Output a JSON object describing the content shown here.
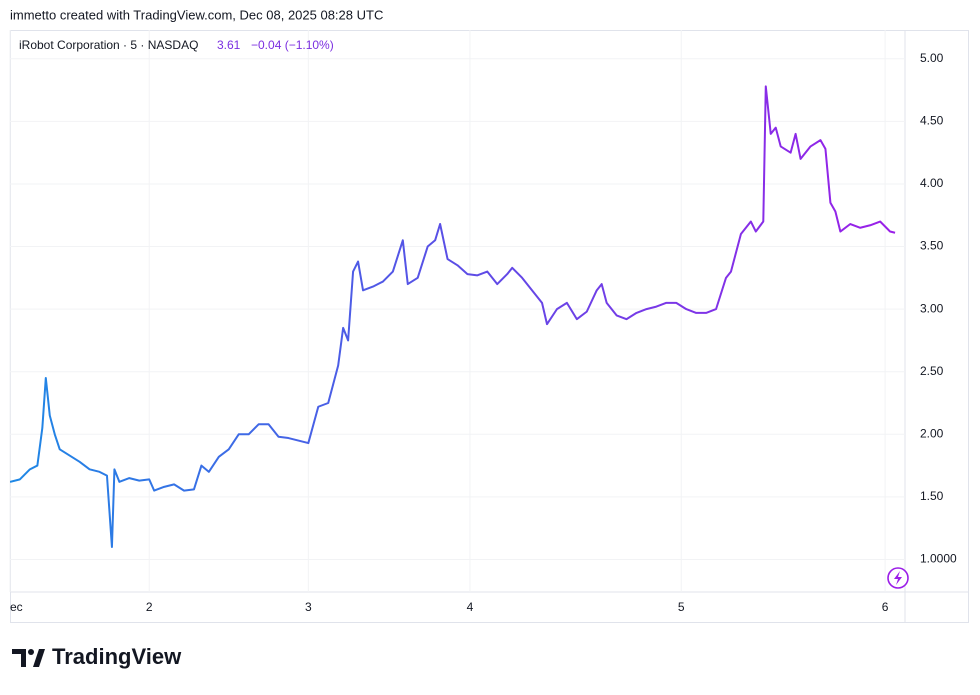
{
  "header": {
    "text": "immetto created with TradingView.com, Dec 08, 2025 08:28 UTC"
  },
  "legend": {
    "symbol": "iRobot Corporation · 5 · NASDAQ",
    "last": "3.61",
    "change": "−0.04 (−1.10%)"
  },
  "footer": {
    "brand": "TradingView"
  },
  "chart_data": {
    "type": "line",
    "xlim": [
      0,
      180
    ],
    "xticks": [
      {
        "value": 0,
        "label": "ec"
      },
      {
        "value": 28,
        "label": "2"
      },
      {
        "value": 60,
        "label": "3"
      },
      {
        "value": 92.5,
        "label": "4"
      },
      {
        "value": 135,
        "label": "5"
      },
      {
        "value": 176,
        "label": "6"
      }
    ],
    "ylim": [
      0.74,
      5.23
    ],
    "yticks": [
      {
        "value": 1,
        "label": "1.0000"
      },
      {
        "value": 1.5,
        "label": "1.50"
      },
      {
        "value": 2,
        "label": "2.00"
      },
      {
        "value": 2.5,
        "label": "2.50"
      },
      {
        "value": 3,
        "label": "3.00"
      },
      {
        "value": 3.5,
        "label": "3.50"
      },
      {
        "value": 4,
        "label": "4.00"
      },
      {
        "value": 4.5,
        "label": "4.50"
      },
      {
        "value": 5,
        "label": "5.00"
      }
    ],
    "grid": true,
    "x": [
      0,
      2,
      4,
      5.5,
      6.5,
      7.2,
      8,
      9,
      10,
      12,
      14,
      16,
      18,
      19.5,
      20.5,
      21,
      22,
      24,
      26,
      28,
      29,
      31,
      33,
      35,
      37,
      38.5,
      40,
      42,
      44,
      46,
      48,
      50,
      52,
      54,
      56,
      58,
      60,
      62,
      64,
      66,
      67,
      68,
      69,
      70,
      71,
      73,
      75,
      77,
      79,
      80,
      82,
      84,
      85.5,
      86.5,
      88,
      90,
      92,
      94,
      96,
      98,
      100,
      101,
      103,
      105,
      107,
      108,
      110,
      112,
      114,
      116,
      118,
      119,
      120,
      122,
      124,
      126,
      128,
      130,
      132,
      134,
      136,
      138,
      140,
      142,
      144,
      145,
      147,
      149,
      150,
      151.5,
      152,
      153,
      154,
      155,
      157,
      158,
      159,
      161,
      163,
      164,
      165,
      166,
      167,
      169,
      171,
      173,
      175,
      177,
      178
    ],
    "series": [
      {
        "gradient": [
          "#1e88e5",
          "#5b4ee6",
          "#9b1ee8"
        ],
        "values": [
          1.62,
          1.64,
          1.72,
          1.75,
          2.05,
          2.45,
          2.15,
          2.0,
          1.88,
          1.83,
          1.78,
          1.72,
          1.7,
          1.67,
          1.1,
          1.72,
          1.62,
          1.65,
          1.63,
          1.64,
          1.55,
          1.58,
          1.6,
          1.55,
          1.56,
          1.75,
          1.7,
          1.82,
          1.88,
          2.0,
          2.0,
          2.08,
          2.08,
          1.98,
          1.97,
          1.95,
          1.93,
          2.22,
          2.25,
          2.55,
          2.85,
          2.75,
          3.3,
          3.38,
          3.15,
          3.18,
          3.22,
          3.3,
          3.55,
          3.2,
          3.25,
          3.5,
          3.55,
          3.68,
          3.4,
          3.35,
          3.28,
          3.27,
          3.3,
          3.2,
          3.28,
          3.33,
          3.25,
          3.15,
          3.05,
          2.88,
          3.0,
          3.05,
          2.92,
          2.98,
          3.15,
          3.2,
          3.05,
          2.95,
          2.92,
          2.97,
          3.0,
          3.02,
          3.05,
          3.05,
          3.0,
          2.97,
          2.97,
          3.0,
          3.25,
          3.3,
          3.6,
          3.7,
          3.62,
          3.7,
          4.78,
          4.4,
          4.45,
          4.3,
          4.25,
          4.4,
          4.2,
          4.3,
          4.35,
          4.28,
          3.85,
          3.78,
          3.62,
          3.68,
          3.65,
          3.67,
          3.7,
          3.62,
          3.61
        ]
      }
    ]
  }
}
